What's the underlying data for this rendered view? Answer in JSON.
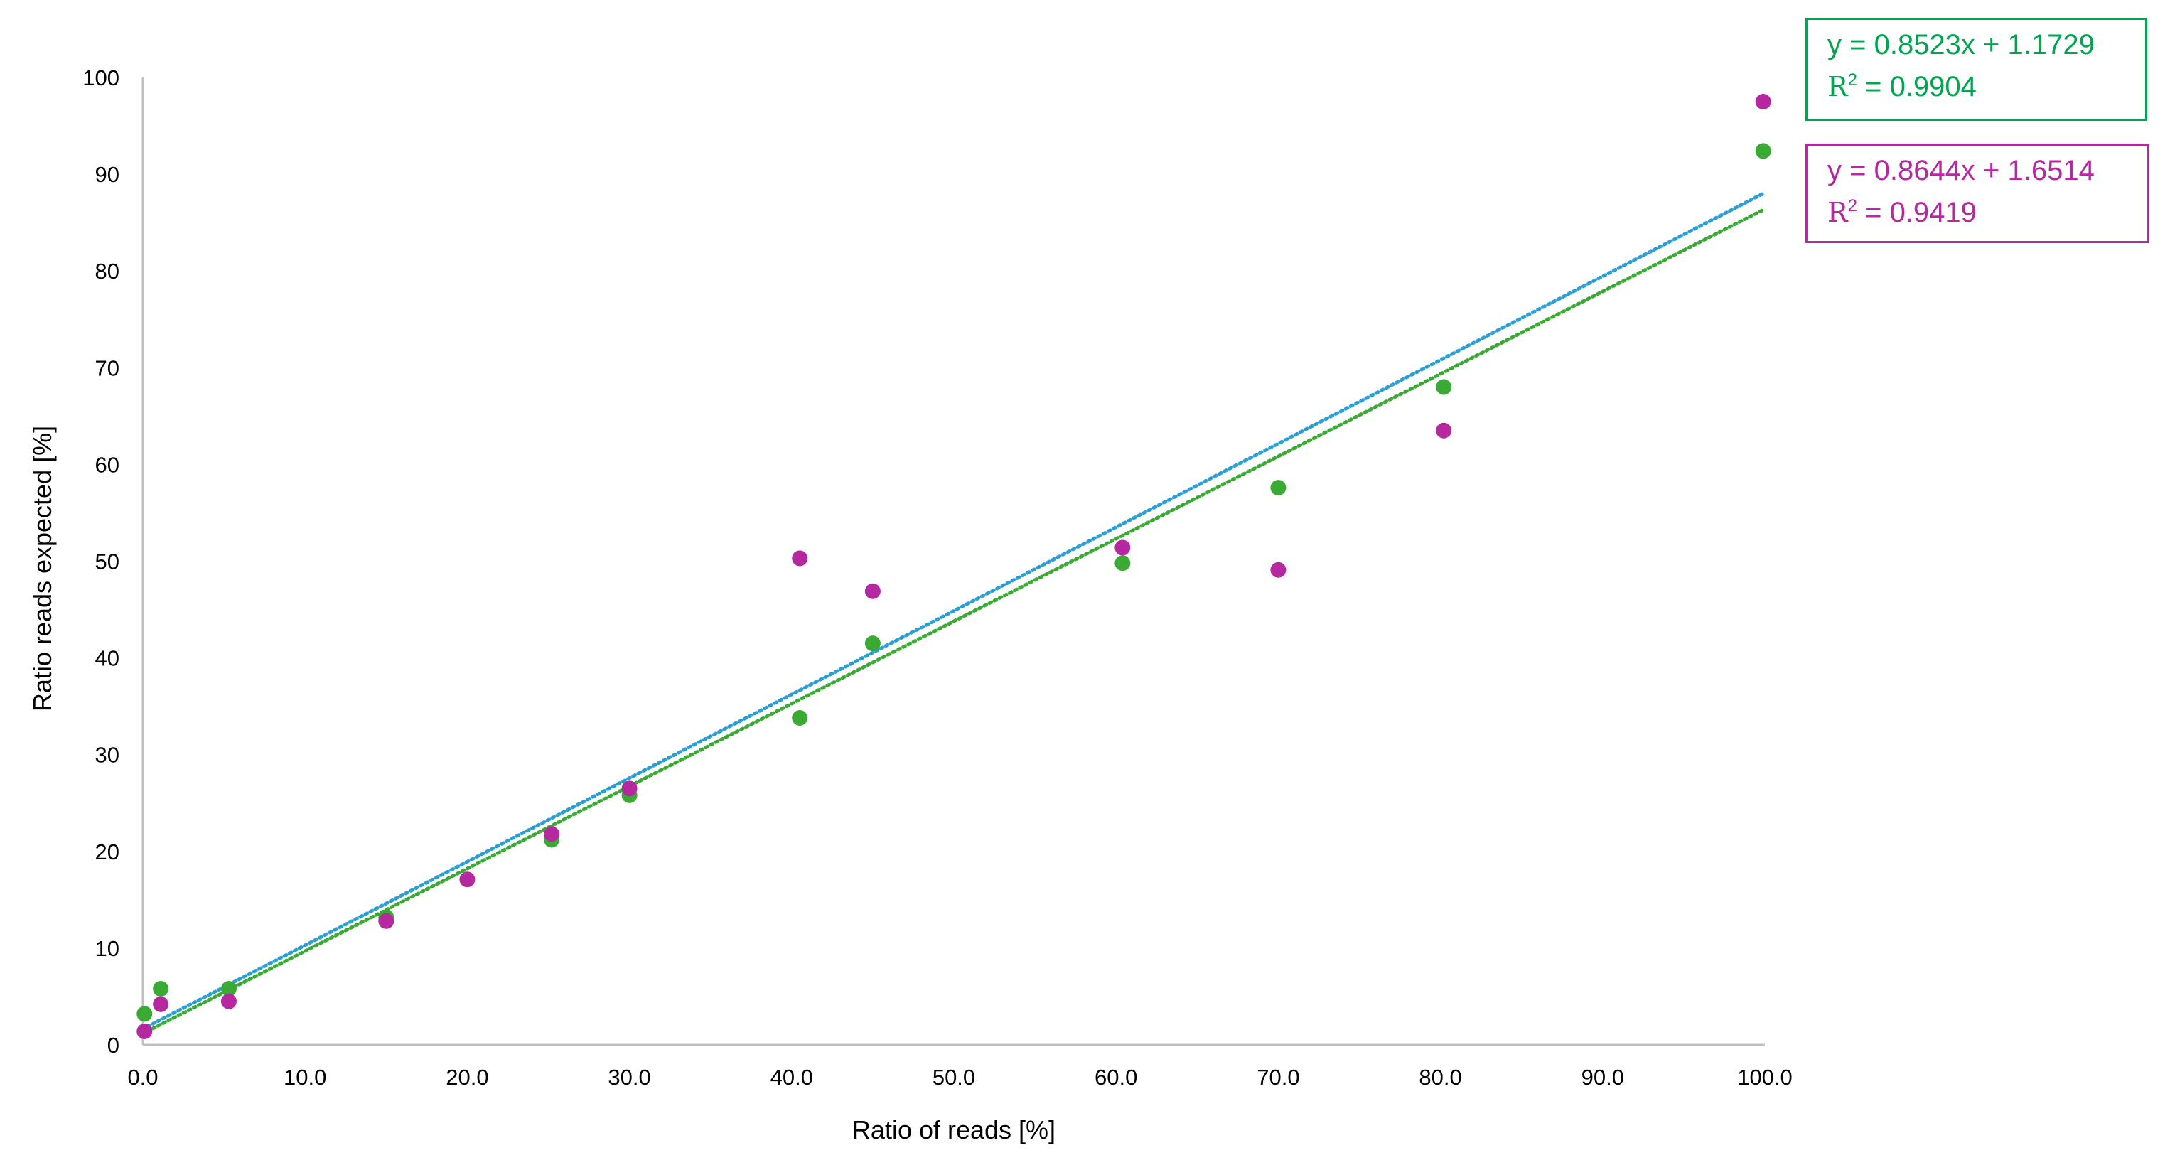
{
  "chart_data": {
    "type": "scatter",
    "title": "",
    "xlabel": "Ratio of reads [%]",
    "ylabel": "Ratio reads expected [%]",
    "xlim": [
      0,
      100
    ],
    "ylim": [
      0,
      100
    ],
    "x_ticks": [
      "0.0",
      "10.0",
      "20.0",
      "30.0",
      "40.0",
      "50.0",
      "60.0",
      "70.0",
      "80.0",
      "90.0",
      "100.0"
    ],
    "y_ticks": [
      "0",
      "10",
      "20",
      "30",
      "40",
      "50",
      "60",
      "70",
      "80",
      "90",
      "100"
    ],
    "grid": false,
    "legend": "none",
    "series": [
      {
        "color": "#3aaa35",
        "points": [
          [
            0.1,
            3.2
          ],
          [
            1.1,
            5.8
          ],
          [
            5.3,
            5.8
          ],
          [
            15.0,
            13.2
          ],
          [
            25.2,
            21.2
          ],
          [
            30.0,
            25.8
          ],
          [
            40.5,
            33.8
          ],
          [
            45.0,
            41.5
          ],
          [
            60.4,
            49.8
          ],
          [
            70.0,
            57.6
          ],
          [
            80.2,
            68.0
          ],
          [
            99.9,
            92.4
          ]
        ]
      },
      {
        "color": "#b5289f",
        "points": [
          [
            0.1,
            1.4
          ],
          [
            1.1,
            4.2
          ],
          [
            5.3,
            4.5
          ],
          [
            15.0,
            12.8
          ],
          [
            20.0,
            17.1
          ],
          [
            25.2,
            21.8
          ],
          [
            30.0,
            26.5
          ],
          [
            40.5,
            50.3
          ],
          [
            45.0,
            46.9
          ],
          [
            60.4,
            51.4
          ],
          [
            70.0,
            49.1
          ],
          [
            80.2,
            63.5
          ],
          [
            99.9,
            97.5
          ]
        ]
      }
    ],
    "trendlines": [
      {
        "color": "#3aaa35",
        "slope": 0.8523,
        "intercept": 1.1729
      },
      {
        "color": "#2a9fd6",
        "slope": 0.8644,
        "intercept": 1.6514
      }
    ],
    "annotations": [
      {
        "color": "#00a550",
        "equation": "y = 0.8523x + 1.1729",
        "r2_label": "R",
        "r2_sup": "2",
        "r2_value": " = 0.9904"
      },
      {
        "color": "#b5289f",
        "equation": "y = 0.8644x + 1.6514",
        "r2_label": "R",
        "r2_sup": "2",
        "r2_value": " = 0.9419"
      }
    ]
  }
}
